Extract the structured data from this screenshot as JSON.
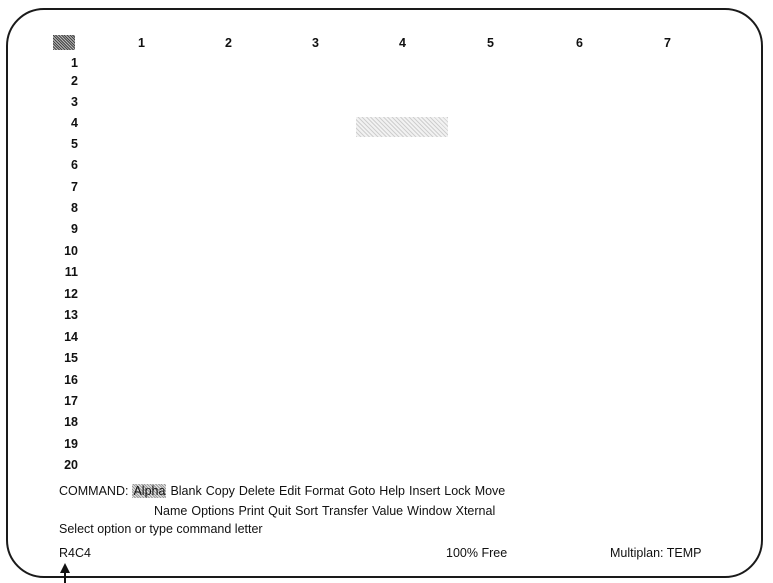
{
  "grid": {
    "columns": [
      "1",
      "2",
      "3",
      "4",
      "5",
      "6",
      "7"
    ],
    "rows": [
      "1",
      "2",
      "3",
      "4",
      "5",
      "6",
      "7",
      "8",
      "9",
      "10",
      "11",
      "12",
      "13",
      "14",
      "15",
      "16",
      "17",
      "18",
      "19",
      "20"
    ]
  },
  "command": {
    "prefix": "COMMAND:",
    "line1": [
      "Alpha",
      "Blank",
      "Copy",
      "Delete",
      "Edit",
      "Format",
      "Goto",
      "Help",
      "Insert",
      "Lock",
      "Move"
    ],
    "line2": [
      "Name",
      "Options",
      "Print",
      "Quit",
      "Sort",
      "Transfer",
      "Value",
      "Window",
      "Xternal"
    ]
  },
  "message": "Select option or type command letter",
  "status": {
    "cell_ref": "R4C4",
    "free": "100% Free",
    "program": "Multiplan: TEMP"
  }
}
